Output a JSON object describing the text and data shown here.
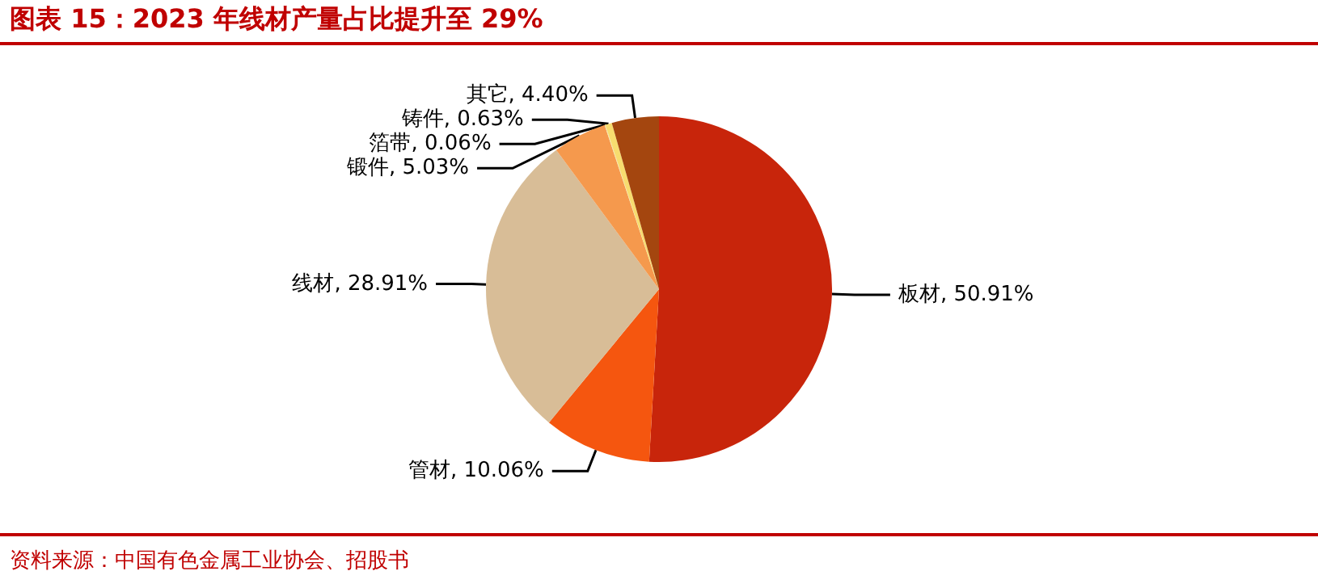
{
  "chart_data": {
    "type": "pie",
    "title": "图表 15：2023 年线材产量占比提升至 29%",
    "categories": [
      "板材",
      "管材",
      "线材",
      "锻件",
      "箔带",
      "铸件",
      "其它"
    ],
    "values": [
      50.91,
      10.06,
      28.91,
      5.03,
      0.06,
      0.63,
      4.4
    ],
    "value_labels": [
      "50.91%",
      "10.06%",
      "28.91%",
      "5.03%",
      "0.06%",
      "0.63%",
      "4.40%"
    ],
    "colors": [
      "#c8250b",
      "#f5560f",
      "#d8bd97",
      "#f5994d",
      "#f4dfa0",
      "#f7dc6f",
      "#a4460f"
    ],
    "annotations": [
      "资料来源：中国有色金属工业协会、招股书"
    ],
    "legend": false
  }
}
